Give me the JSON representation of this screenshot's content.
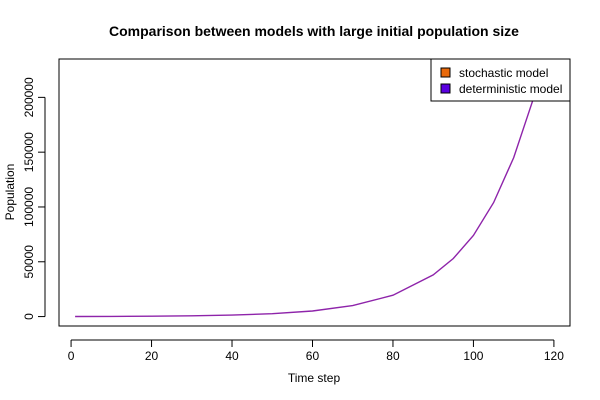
{
  "chart_data": {
    "type": "line",
    "title": "Comparison between models with large initial population size",
    "xlabel": "Time step",
    "ylabel": "Population",
    "xlim": [
      -3,
      124
    ],
    "ylim": [
      -8600,
      235000
    ],
    "x_ticks": [
      0,
      20,
      40,
      60,
      80,
      100,
      120
    ],
    "y_ticks": [
      0,
      50000,
      100000,
      150000,
      200000
    ],
    "legend": {
      "position": "top-right",
      "entries": [
        {
          "label": "stochastic model",
          "color": "#e8690b"
        },
        {
          "label": "deterministic model",
          "color": "#5a00e0"
        }
      ]
    },
    "series": [
      {
        "name": "deterministic model",
        "color": "#8e24aa",
        "x": [
          1,
          10,
          20,
          30,
          40,
          50,
          60,
          70,
          80,
          90,
          95,
          100,
          105,
          110,
          115,
          119,
          120
        ],
        "y": [
          100,
          180,
          350,
          700,
          1350,
          2600,
          5100,
          10000,
          19500,
          38000,
          53000,
          74000,
          104000,
          145000,
          200000,
          232000,
          240000
        ]
      }
    ]
  }
}
